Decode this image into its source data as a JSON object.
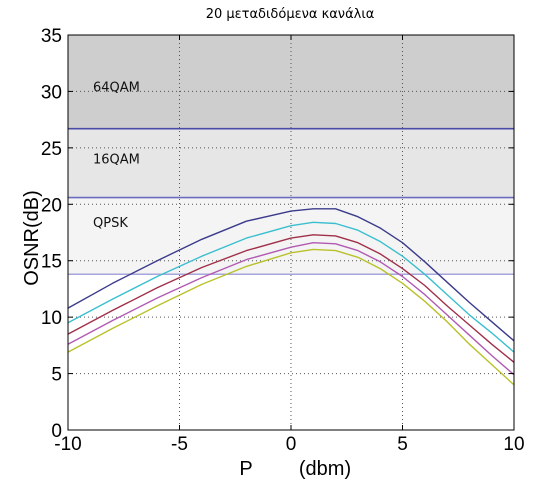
{
  "chart_data": {
    "type": "line",
    "title": "20 μεταδιδόμενα κανάλια",
    "xlabel_left": "P",
    "xlabel_right": "(dbm)",
    "ylabel": "OSNR(dB)",
    "xlim": [
      -10,
      10
    ],
    "ylim": [
      0,
      35
    ],
    "xticks": [
      -10,
      -5,
      0,
      5,
      10
    ],
    "yticks": [
      0,
      5,
      10,
      15,
      20,
      25,
      30,
      35
    ],
    "grid": true,
    "thresholds": [
      {
        "label": "QPSK",
        "y": 13.8,
        "color": "#a6a6dc"
      },
      {
        "label": "16QAM",
        "y": 20.6,
        "color": "#6c6cc0"
      },
      {
        "label": "64QAM",
        "y": 26.7,
        "color": "#4a4aa8"
      }
    ],
    "bands": [
      {
        "label": "QPSK",
        "from": 13.8,
        "to": 20.6,
        "color": "#f4f4f4"
      },
      {
        "label": "16QAM",
        "from": 20.6,
        "to": 26.7,
        "color": "#e6e6e6"
      },
      {
        "label": "64QAM",
        "from": 26.7,
        "to": 35,
        "color": "#cecece"
      }
    ],
    "series": [
      {
        "color": "#3b3b8c",
        "x": [
          -10,
          -8,
          -6,
          -4,
          -2,
          0,
          1,
          2,
          3,
          4,
          5,
          6,
          7,
          8,
          9,
          10
        ],
        "y": [
          10.8,
          13.0,
          15.0,
          16.9,
          18.5,
          19.4,
          19.6,
          19.6,
          18.9,
          17.9,
          16.6,
          14.9,
          13.1,
          11.3,
          9.6,
          7.9
        ]
      },
      {
        "color": "#3bbfcf",
        "x": [
          -10,
          -8,
          -6,
          -4,
          -2,
          0,
          1,
          2,
          3,
          4,
          5,
          6,
          7,
          8,
          9,
          10
        ],
        "y": [
          9.5,
          11.6,
          13.6,
          15.4,
          17.0,
          18.1,
          18.4,
          18.3,
          17.7,
          16.7,
          15.4,
          13.8,
          12.0,
          10.2,
          8.6,
          6.9
        ]
      },
      {
        "color": "#a0304a",
        "x": [
          -10,
          -8,
          -6,
          -4,
          -2,
          0,
          1,
          2,
          3,
          4,
          5,
          6,
          7,
          8,
          9,
          10
        ],
        "y": [
          8.5,
          10.6,
          12.6,
          14.4,
          15.9,
          17.0,
          17.3,
          17.2,
          16.6,
          15.6,
          14.3,
          12.8,
          11.0,
          9.3,
          7.6,
          6.0
        ]
      },
      {
        "color": "#b25ab2",
        "x": [
          -10,
          -8,
          -6,
          -4,
          -2,
          0,
          1,
          2,
          3,
          4,
          5,
          6,
          7,
          8,
          9,
          10
        ],
        "y": [
          7.6,
          9.7,
          11.7,
          13.5,
          15.1,
          16.2,
          16.6,
          16.5,
          15.9,
          14.9,
          13.6,
          12.0,
          10.2,
          8.4,
          6.6,
          4.9
        ]
      },
      {
        "color": "#b9c22a",
        "x": [
          -10,
          -8,
          -6,
          -4,
          -2,
          0,
          1,
          2,
          3,
          4,
          5,
          6,
          7,
          8,
          9,
          10
        ],
        "y": [
          6.9,
          9.0,
          11.0,
          12.9,
          14.5,
          15.7,
          16.0,
          15.9,
          15.3,
          14.3,
          13.0,
          11.4,
          9.6,
          7.6,
          5.8,
          4.0
        ]
      }
    ]
  }
}
